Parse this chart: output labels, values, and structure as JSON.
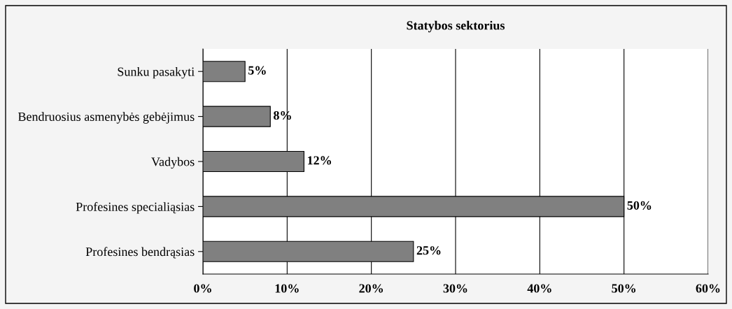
{
  "chart_data": {
    "type": "bar",
    "orientation": "horizontal",
    "title": "Statybos sektorius",
    "categories": [
      "Sunku pasakyti",
      "Bendruosius asmenybės gebėjimus",
      "Vadybos",
      "Profesines specialiąsias",
      "Profesines bendrąsias"
    ],
    "values": [
      5,
      8,
      12,
      50,
      25
    ],
    "color": "#808080",
    "value_labels": [
      "5%",
      "8%",
      "12%",
      "50%",
      "25%"
    ],
    "xlim": [
      0,
      60
    ],
    "xticks": [
      {
        "value": 0,
        "label": "0%"
      },
      {
        "value": 10,
        "label": "10%"
      },
      {
        "value": 20,
        "label": "20%"
      },
      {
        "value": 30,
        "label": "30%"
      },
      {
        "value": 40,
        "label": "40%"
      },
      {
        "value": 50,
        "label": "50%"
      },
      {
        "value": 60,
        "label": "60%"
      }
    ],
    "grid": "x"
  }
}
